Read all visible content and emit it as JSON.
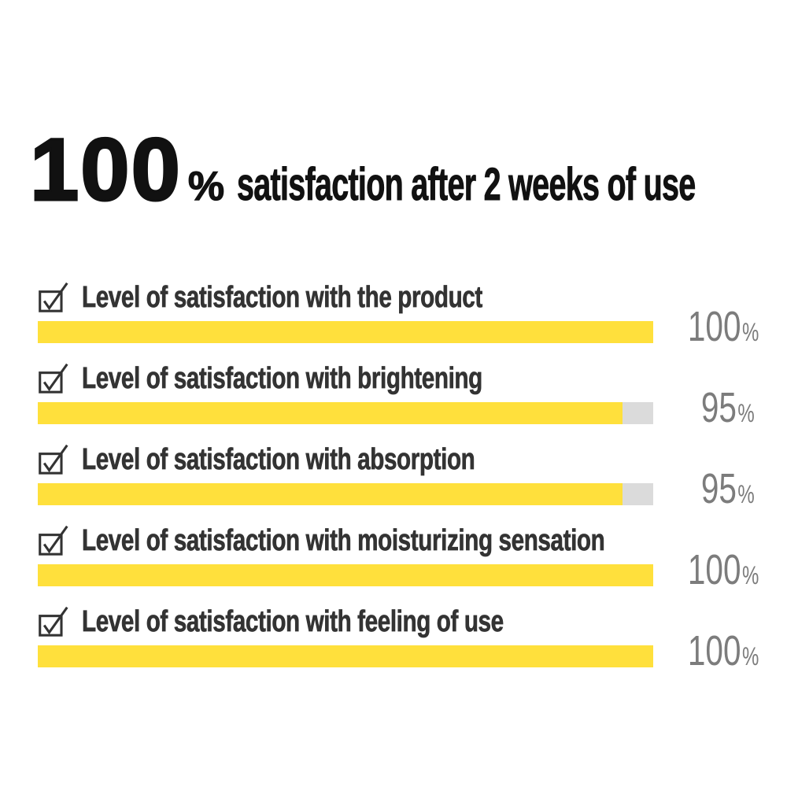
{
  "headline": {
    "number": "100",
    "percent_sign": "%",
    "text": "satisfaction after 2 weeks of use"
  },
  "metrics": [
    {
      "label": "Level of satisfaction with the product",
      "value": 100,
      "unit": "%"
    },
    {
      "label": "Level of satisfaction with brightening",
      "value": 95,
      "unit": "%"
    },
    {
      "label": "Level of satisfaction with absorption",
      "value": 95,
      "unit": "%"
    },
    {
      "label": "Level of satisfaction with moisturizing sensation",
      "value": 100,
      "unit": "%"
    },
    {
      "label": "Level of satisfaction with feeling of use",
      "value": 100,
      "unit": "%"
    }
  ],
  "icons": {
    "row_marker": "checkbox-checked-icon"
  },
  "colors": {
    "bar_fill": "#FFE03C",
    "bar_remainder": "#DBDBDB",
    "headline_text": "#111111",
    "label_text": "#333333",
    "value_text": "#7C7C7C",
    "background": "#FFFFFF"
  },
  "chart_data": {
    "type": "bar",
    "orientation": "horizontal",
    "title": "100% satisfaction after 2 weeks of use",
    "categories": [
      "Level of satisfaction with the product",
      "Level of satisfaction with brightening",
      "Level of satisfaction with absorption",
      "Level of satisfaction with moisturizing sensation",
      "Level of satisfaction with feeling of use"
    ],
    "values": [
      100,
      95,
      95,
      100,
      100
    ],
    "value_labels": [
      "100%",
      "95%",
      "95%",
      "100%",
      "100%"
    ],
    "xlabel": "",
    "ylabel": "",
    "xlim": [
      0,
      100
    ],
    "grid": false,
    "legend": false,
    "bar_color": "#FFE03C",
    "track_color": "#DBDBDB"
  }
}
